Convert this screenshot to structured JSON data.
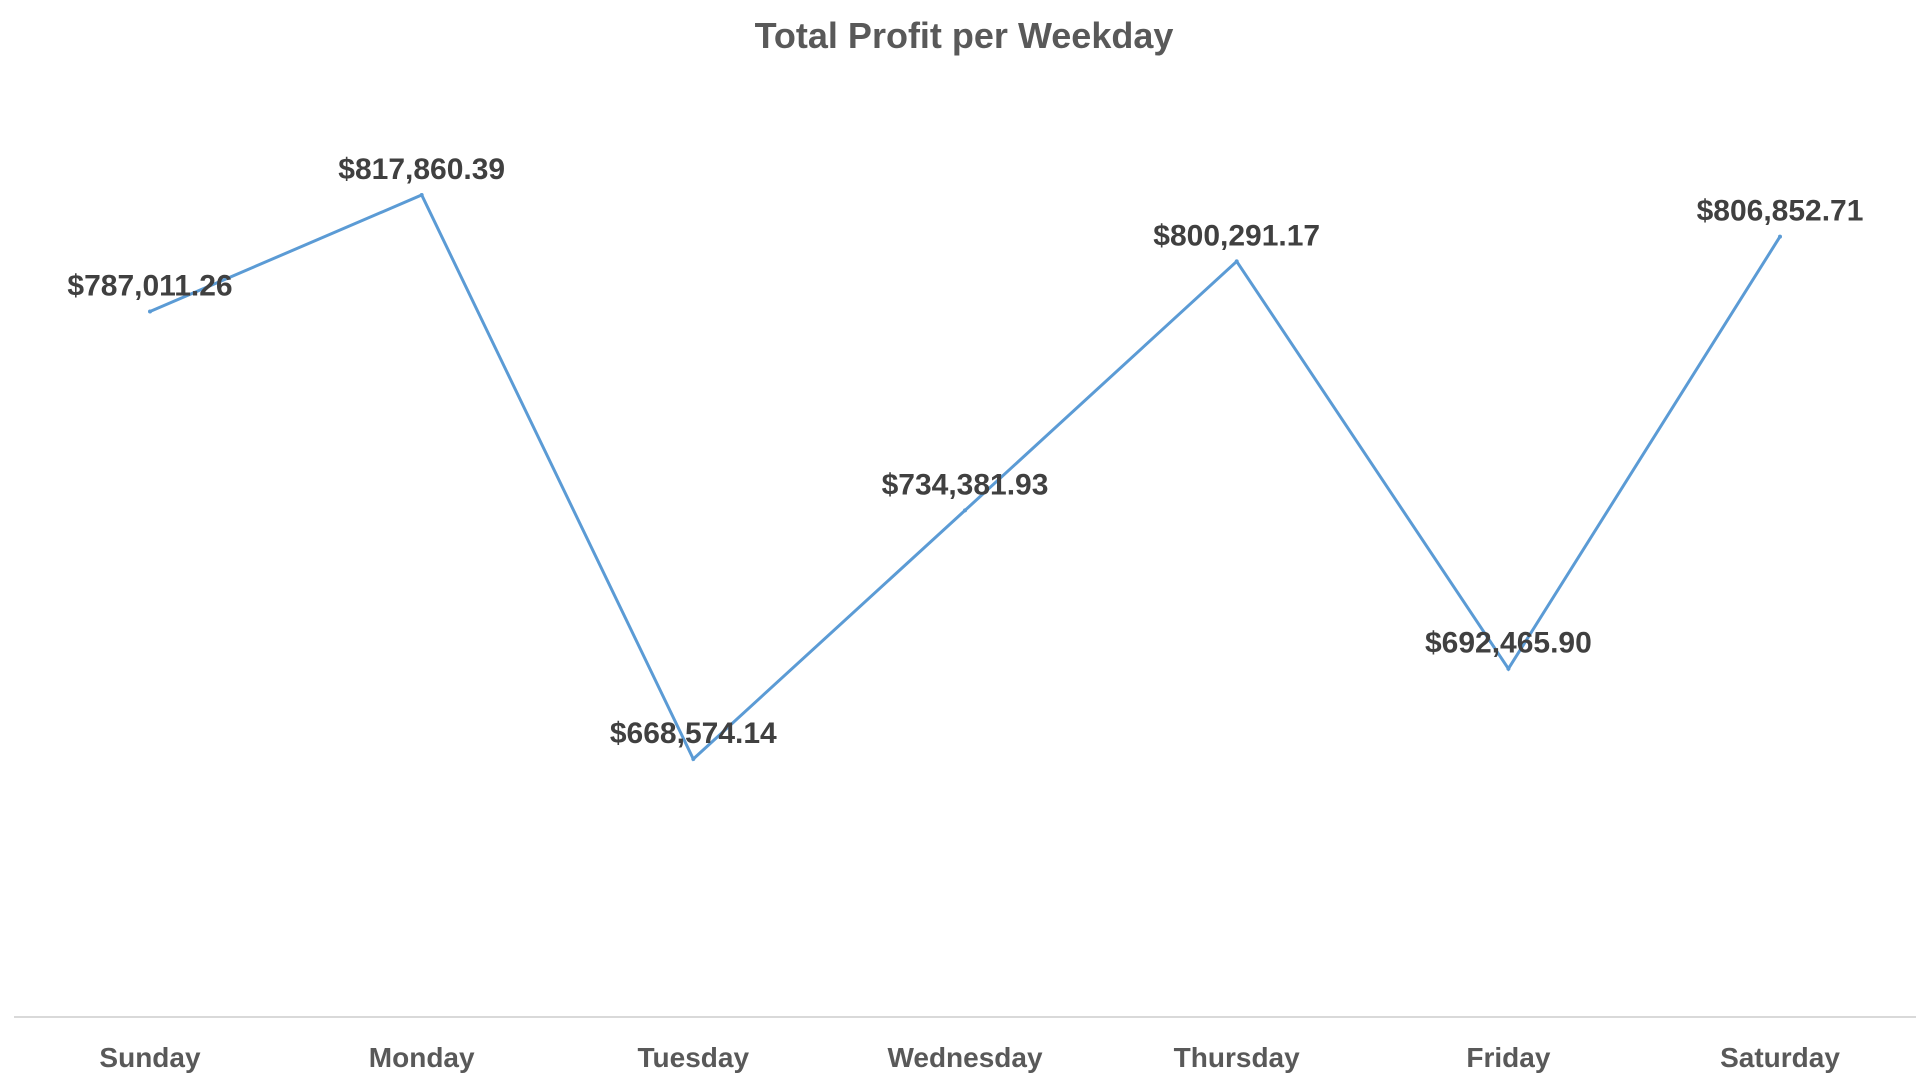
{
  "chart_data": {
    "type": "line",
    "title": "Total Profit per Weekday",
    "categories": [
      "Sunday",
      "Monday",
      "Tuesday",
      "Wednesday",
      "Thursday",
      "Friday",
      "Saturday"
    ],
    "series": [
      {
        "values": [
          787011.26,
          817860.39,
          668574.14,
          734381.93,
          800291.17,
          692465.9,
          806852.71
        ],
        "labels": [
          "$787,011.26",
          "$817,860.39",
          "$668,574.14",
          "$734,381.93",
          "$800,291.17",
          "$692,465.90",
          "$806,852.71"
        ],
        "color": "#5b9bd5"
      }
    ],
    "ylim": [
      600000,
      850000
    ],
    "grid": false,
    "legend": "none",
    "axis_color": "#d9d9d9",
    "title_color": "#595959",
    "label_color": "#404040"
  }
}
